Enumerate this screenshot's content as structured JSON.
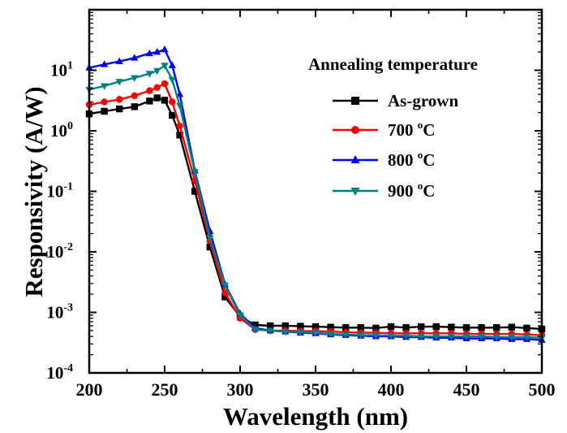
{
  "chart_data": {
    "type": "line",
    "xlabel": "Wavelength (nm)",
    "ylabel": "Responsivity (A/W)",
    "xlim": [
      200,
      500
    ],
    "ylim": [
      0.0001,
      100
    ],
    "yscale": "log",
    "x_ticks": [
      "200",
      "250",
      "300",
      "350",
      "400",
      "450",
      "500"
    ],
    "y_ticks": [
      {
        "base": "10",
        "exp": "-4",
        "value": 0.0001
      },
      {
        "base": "10",
        "exp": "-3",
        "value": 0.001
      },
      {
        "base": "10",
        "exp": "-2",
        "value": 0.01
      },
      {
        "base": "10",
        "exp": "-1",
        "value": 0.1
      },
      {
        "base": "10",
        "exp": "0",
        "value": 1
      },
      {
        "base": "10",
        "exp": "1",
        "value": 10
      }
    ],
    "legend_title": "Annealing temperature",
    "legend_placement": "top-right",
    "grid": false,
    "series": [
      {
        "name": "As-grown",
        "legend_main": "As-grown",
        "legend_sup": "",
        "legend_suffix": "",
        "color": "#000000",
        "marker": "square",
        "x": [
          200,
          210,
          220,
          230,
          240,
          245,
          250,
          255,
          260,
          270,
          280,
          290,
          300,
          310,
          320,
          330,
          340,
          350,
          360,
          370,
          380,
          390,
          400,
          410,
          420,
          430,
          440,
          450,
          460,
          470,
          480,
          490,
          500
        ],
        "y": [
          1.9,
          2.1,
          2.3,
          2.5,
          3.1,
          3.5,
          3.2,
          1.8,
          0.85,
          0.1,
          0.012,
          0.0018,
          0.00085,
          0.00062,
          0.0006,
          0.0006,
          0.00059,
          0.00058,
          0.00057,
          0.00056,
          0.00056,
          0.00055,
          0.00058,
          0.00056,
          0.00058,
          0.00058,
          0.00057,
          0.00056,
          0.00056,
          0.00056,
          0.00057,
          0.00055,
          0.00053
        ]
      },
      {
        "name": "700 °C",
        "legend_main": "700 ",
        "legend_sup": "o",
        "legend_suffix": "C",
        "color": "#ff0000",
        "marker": "circle",
        "x": [
          200,
          210,
          220,
          230,
          240,
          245,
          250,
          255,
          260,
          270,
          280,
          290,
          300,
          310,
          320,
          330,
          340,
          350,
          360,
          370,
          380,
          390,
          400,
          410,
          420,
          430,
          440,
          450,
          460,
          470,
          480,
          490,
          500
        ],
        "y": [
          2.7,
          3.0,
          3.3,
          3.8,
          4.6,
          5.2,
          6.0,
          3.0,
          1.2,
          0.15,
          0.015,
          0.0021,
          0.0008,
          0.00052,
          0.0005,
          0.0005,
          0.00049,
          0.00049,
          0.00048,
          0.00047,
          0.00046,
          0.00046,
          0.00045,
          0.00045,
          0.00045,
          0.00045,
          0.00045,
          0.00044,
          0.00044,
          0.00044,
          0.00044,
          0.00043,
          0.00042
        ]
      },
      {
        "name": "800 °C",
        "legend_main": "800 ",
        "legend_sup": "o",
        "legend_suffix": "C",
        "color": "#0000ff",
        "marker": "triangle-up",
        "x": [
          200,
          210,
          220,
          230,
          240,
          245,
          250,
          255,
          260,
          270,
          280,
          290,
          300,
          310,
          320,
          330,
          340,
          350,
          360,
          370,
          380,
          390,
          400,
          410,
          420,
          430,
          440,
          450,
          460,
          470,
          480,
          490,
          500
        ],
        "y": [
          11,
          12.5,
          14,
          16,
          19,
          20,
          22,
          12,
          4,
          0.22,
          0.022,
          0.0029,
          0.00095,
          0.00055,
          0.0005,
          0.00048,
          0.00046,
          0.00045,
          0.00043,
          0.00042,
          0.00041,
          0.0004,
          0.0004,
          0.00039,
          0.00039,
          0.00038,
          0.00038,
          0.00037,
          0.00037,
          0.00037,
          0.00036,
          0.00036,
          0.00035
        ]
      },
      {
        "name": "900 °C",
        "legend_main": "900 ",
        "legend_sup": "o",
        "legend_suffix": "C",
        "color": "#008080",
        "marker": "triangle-down",
        "x": [
          200,
          210,
          220,
          230,
          240,
          245,
          250,
          255,
          260,
          270,
          280,
          290,
          300,
          310,
          320,
          330,
          340,
          350,
          360,
          370,
          380,
          390,
          400,
          410,
          420,
          430,
          440,
          450,
          460,
          470,
          480,
          490,
          500
        ],
        "y": [
          4.8,
          5.5,
          6.5,
          7.5,
          8.8,
          9.8,
          12,
          7.0,
          2.6,
          0.21,
          0.017,
          0.0028,
          0.0009,
          0.00052,
          0.0005,
          0.00048,
          0.00047,
          0.00046,
          0.00044,
          0.00043,
          0.00042,
          0.00042,
          0.00041,
          0.00041,
          0.0004,
          0.0004,
          0.0004,
          0.0004,
          0.0004,
          0.00039,
          0.00039,
          0.00039,
          0.00038
        ]
      }
    ]
  }
}
